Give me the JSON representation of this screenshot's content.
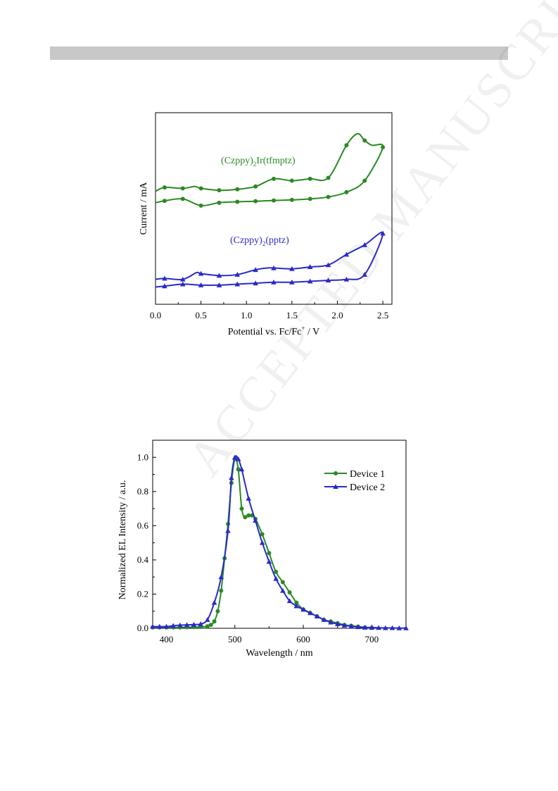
{
  "watermark": "ACCEPTED MANUSCRIPT",
  "chart_data": [
    {
      "type": "line",
      "title": "",
      "xlabel": "Potential vs. Fc/Fc",
      "xlabel_sup": "+",
      "xlabel_tail": " / V",
      "ylabel": "Current / mA",
      "xlim": [
        0.0,
        2.6
      ],
      "ylim": [
        0.0,
        10.0
      ],
      "xticks": [
        "0.0",
        "0.5",
        "1.0",
        "1.5",
        "2.0",
        "2.5"
      ],
      "grid": false,
      "annotations": [
        {
          "label": "(Czppy)",
          "sub": "2",
          "tail": "Ir(tfmptz)",
          "color": "#2a8a22",
          "x": 0.72,
          "y": 7.35
        },
        {
          "label": "(Czppy)",
          "sub": "2",
          "tail": "(pptz)",
          "color": "#2a2ac8",
          "x": 0.82,
          "y": 3.2
        }
      ],
      "series": [
        {
          "color": "#2a8a22",
          "marker": "circle",
          "x": [
            0.0,
            0.1,
            0.3,
            0.43,
            0.5,
            0.7,
            0.9,
            1.1,
            1.3,
            1.5,
            1.7,
            1.9,
            2.1,
            2.22,
            2.3,
            2.38,
            2.5,
            2.3,
            2.1,
            1.9,
            1.7,
            1.5,
            1.3,
            1.1,
            0.9,
            0.7,
            0.5,
            0.3,
            0.1,
            0.0
          ],
          "y": [
            5.9,
            6.1,
            6.05,
            6.15,
            6.05,
            5.95,
            6.0,
            6.15,
            6.55,
            6.45,
            6.55,
            6.6,
            8.3,
            8.9,
            8.55,
            8.3,
            8.2,
            6.45,
            5.85,
            5.6,
            5.5,
            5.45,
            5.42,
            5.38,
            5.35,
            5.3,
            5.15,
            5.5,
            5.4,
            5.3
          ],
          "marker_x": [
            0.1,
            0.3,
            0.5,
            0.7,
            0.9,
            1.1,
            1.3,
            1.5,
            1.7,
            1.9,
            2.1,
            2.3,
            2.5,
            2.3,
            2.1,
            1.9,
            1.7,
            1.5,
            1.3,
            1.1,
            0.9,
            0.7,
            0.5,
            0.3,
            0.1
          ]
        },
        {
          "color": "#2a2ac8",
          "marker": "triangle",
          "x": [
            0.0,
            0.1,
            0.3,
            0.45,
            0.5,
            0.7,
            0.9,
            1.1,
            1.25,
            1.5,
            1.7,
            1.9,
            2.1,
            2.3,
            2.5,
            2.3,
            2.1,
            1.9,
            1.7,
            1.5,
            1.3,
            1.1,
            0.9,
            0.7,
            0.5,
            0.3,
            0.1,
            0.0
          ],
          "y": [
            1.3,
            1.35,
            1.3,
            1.65,
            1.6,
            1.5,
            1.55,
            1.8,
            1.9,
            1.85,
            1.95,
            2.05,
            2.6,
            3.1,
            3.7,
            1.55,
            1.3,
            1.25,
            1.2,
            1.15,
            1.15,
            1.1,
            1.05,
            1.0,
            1.0,
            1.05,
            0.95,
            0.9
          ],
          "marker_x": [
            0.1,
            0.3,
            0.5,
            0.7,
            0.9,
            1.1,
            1.3,
            1.5,
            1.7,
            1.9,
            2.1,
            2.3,
            2.5,
            2.3,
            2.1,
            1.9,
            1.7,
            1.5,
            1.3,
            1.1,
            0.9,
            0.7,
            0.5,
            0.3,
            0.1
          ]
        }
      ]
    },
    {
      "type": "line",
      "title": "",
      "xlabel": "Wavelength / nm",
      "ylabel": "Normalized EL Intensity / a.u.",
      "xlim": [
        380,
        750
      ],
      "ylim": [
        0.0,
        1.1
      ],
      "xticks": [
        "400",
        "500",
        "600",
        "700"
      ],
      "yticks": [
        "0.0",
        "0.2",
        "0.4",
        "0.6",
        "0.8",
        "1.0"
      ],
      "grid": false,
      "legend": "top-right",
      "series": [
        {
          "name": "Device 1",
          "color": "#2a8a22",
          "marker": "circle",
          "x": [
            380,
            390,
            400,
            410,
            420,
            430,
            440,
            450,
            460,
            465,
            470,
            475,
            480,
            485,
            490,
            495,
            500,
            505,
            510,
            515,
            520,
            525,
            530,
            540,
            550,
            560,
            570,
            580,
            590,
            600,
            610,
            620,
            630,
            640,
            650,
            660,
            670,
            680,
            690,
            700
          ],
          "y": [
            0.005,
            0.005,
            0.005,
            0.005,
            0.005,
            0.006,
            0.007,
            0.008,
            0.012,
            0.02,
            0.04,
            0.1,
            0.22,
            0.41,
            0.61,
            0.85,
            0.99,
            0.93,
            0.7,
            0.65,
            0.66,
            0.66,
            0.64,
            0.55,
            0.44,
            0.33,
            0.27,
            0.21,
            0.15,
            0.11,
            0.09,
            0.07,
            0.05,
            0.04,
            0.03,
            0.02,
            0.015,
            0.01,
            0.005,
            0.003
          ]
        },
        {
          "name": "Device 2",
          "color": "#2a2ac8",
          "marker": "triangle",
          "x": [
            380,
            390,
            400,
            410,
            420,
            430,
            440,
            450,
            460,
            470,
            480,
            490,
            495,
            500,
            505,
            510,
            520,
            530,
            540,
            550,
            560,
            570,
            580,
            590,
            600,
            610,
            620,
            630,
            640,
            650,
            660,
            670,
            680,
            690,
            700,
            710,
            720,
            730,
            740,
            750
          ],
          "y": [
            0.01,
            0.01,
            0.01,
            0.015,
            0.018,
            0.02,
            0.022,
            0.025,
            0.05,
            0.15,
            0.3,
            0.57,
            0.88,
            1.0,
            0.99,
            0.93,
            0.76,
            0.63,
            0.5,
            0.39,
            0.29,
            0.22,
            0.16,
            0.13,
            0.11,
            0.09,
            0.07,
            0.05,
            0.035,
            0.025,
            0.017,
            0.012,
            0.008,
            0.005,
            0.004,
            0.003,
            0.002,
            0.002,
            0.001,
            0.001
          ]
        }
      ]
    }
  ]
}
